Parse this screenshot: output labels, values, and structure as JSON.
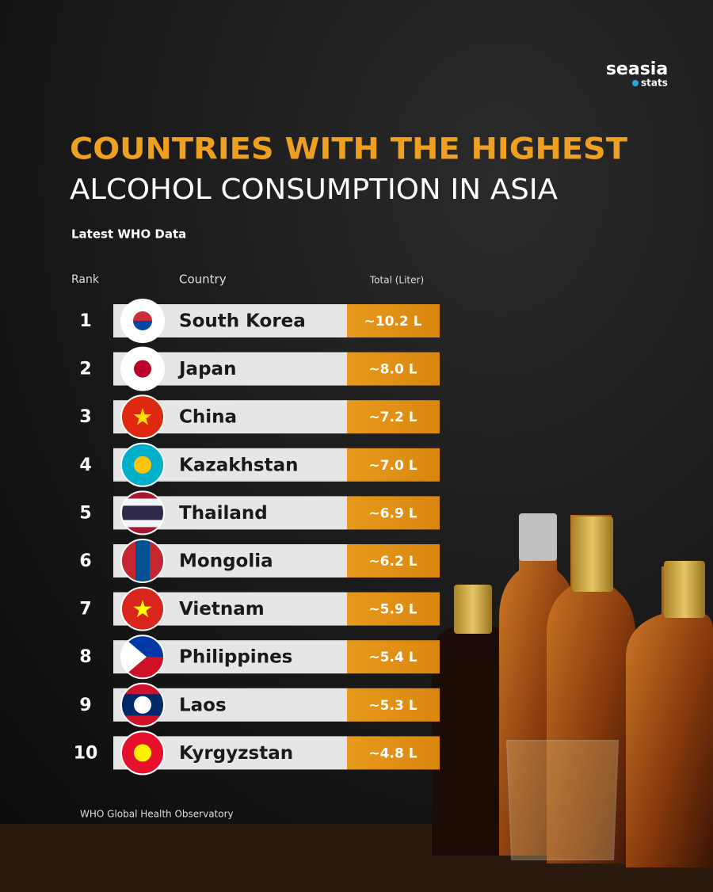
{
  "logo": {
    "name": "seasia",
    "sub": "stats"
  },
  "header": {
    "title_line1": "COUNTRIES WITH THE HIGHEST",
    "title_line2": "ALCOHOL CONSUMPTION IN ASIA",
    "subtitle": "Latest WHO Data"
  },
  "table": {
    "columns": [
      "Rank",
      "Country",
      "Total (Liter)"
    ],
    "rows": [
      [
        1,
        "South Korea",
        "~10.2 L"
      ],
      [
        2,
        "Japan",
        "~8.0 L"
      ],
      [
        3,
        "China",
        "~7.2 L"
      ],
      [
        4,
        "Kazakhstan",
        "~7.0 L"
      ],
      [
        5,
        "Thailand",
        "~6.9 L"
      ],
      [
        6,
        "Mongolia",
        "~6.2 L"
      ],
      [
        7,
        "Vietnam",
        "~5.9 L"
      ],
      [
        8,
        "Philippines",
        "~5.4 L"
      ],
      [
        9,
        "Laos",
        "~5.3 L"
      ],
      [
        10,
        "Kyrgyzstan",
        "~4.8 L"
      ]
    ]
  },
  "source": "WHO Global Health Observatory"
}
